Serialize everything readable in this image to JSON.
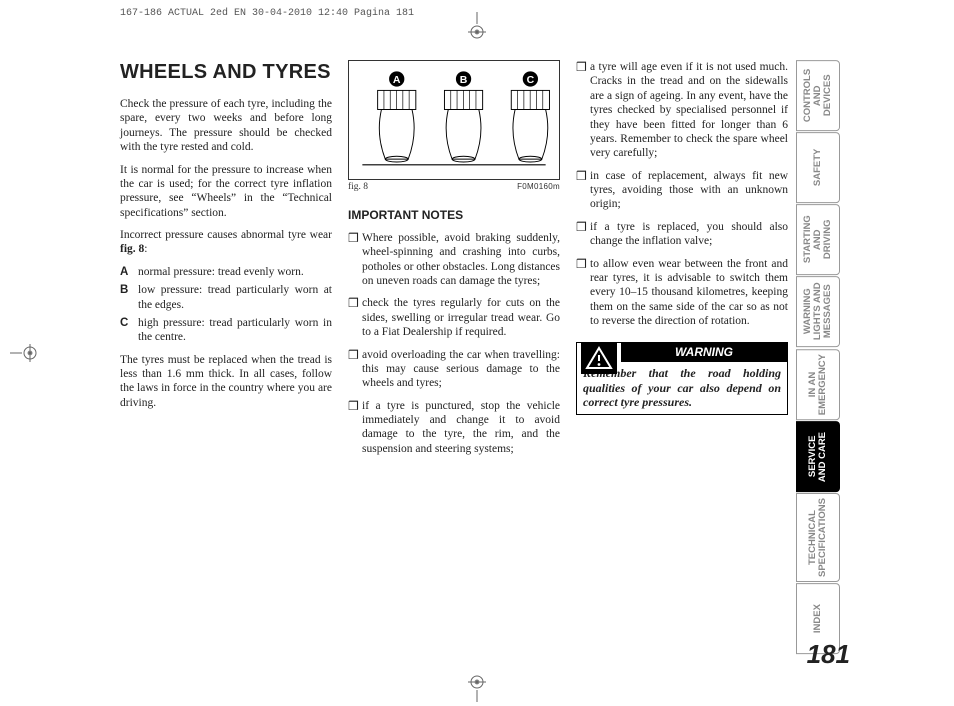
{
  "header": "167-186 ACTUAL 2ed EN  30-04-2010  12:40  Pagina 181",
  "pageNumber": "181",
  "title": "WHEELS AND TYRES",
  "col1": {
    "p1": "Check the pressure of each tyre, including the spare, every two weeks and before long journeys. The pressure should be checked with the tyre rested and cold.",
    "p2": "It is normal for the pressure to increase when the car is used; for the correct tyre inflation pressure, see “Wheels” in the “Technical specifications” section.",
    "p3_a": "Incorrect pressure causes abnormal tyre wear ",
    "p3_b": "fig. 8",
    "p3_c": ":",
    "defs": [
      {
        "k": "A",
        "v": "normal pressure: tread evenly worn."
      },
      {
        "k": "B",
        "v": "low pressure: tread particularly worn at the edges."
      },
      {
        "k": "C",
        "v": "high pressure: tread particularly worn in the centre."
      }
    ],
    "p4": "The tyres must be replaced when the tread is less than 1.6 mm thick. In all cases, follow the laws in force in the country where you are driving."
  },
  "figure": {
    "labels": [
      "A",
      "B",
      "C"
    ],
    "caption": "fig. 8",
    "code": "F0M0160m"
  },
  "col2": {
    "subhead": "IMPORTANT NOTES",
    "bullets": [
      "Where possible, avoid braking suddenly, wheel-spinning and crashing into curbs, potholes or other obstacles. Long distances on uneven roads can damage the tyres;",
      "check the tyres regularly for cuts on the sides, swelling or irregular tread wear. Go to a Fiat Dealership if required.",
      "avoid overloading the car when travelling: this may cause serious damage to the wheels and tyres;",
      "if a tyre is punctured, stop the vehicle immediately and change it to avoid damage to the tyre, the rim, and the suspension and steering systems;"
    ]
  },
  "col3": {
    "bullets": [
      "a tyre will age even if it is not used much. Cracks in the tread and on the sidewalls are a sign of ageing. In any event, have the tyres checked by specialised personnel if they have been fitted for longer than 6 years. Remember to check the spare wheel very carefully;",
      "in case of replacement, always fit new tyres, avoiding those with an unknown origin;",
      "if a tyre is replaced, you should also change the inflation valve;",
      "to allow even wear between the front and rear tyres, it is advisable to switch them every 10–15 thousand kilometres, keeping them on the same side of the car so as not to reverse the direction of rotation."
    ],
    "warningHead": "WARNING",
    "warningBody": "Remember that the road holding qualities of your car also depend on correct tyre pressures."
  },
  "tabs": [
    {
      "label": "CONTROLS AND DEVICES",
      "active": false
    },
    {
      "label": "SAFETY",
      "active": false
    },
    {
      "label": "STARTING AND DRIVING",
      "active": false
    },
    {
      "label": "WARNING LIGHTS AND MESSAGES",
      "active": false
    },
    {
      "label": "IN AN EMERGENCY",
      "active": false
    },
    {
      "label": "SERVICE AND CARE",
      "active": true
    },
    {
      "label": "TECHNICAL SPECIFICATIONS",
      "active": false
    },
    {
      "label": "INDEX",
      "active": false
    }
  ]
}
